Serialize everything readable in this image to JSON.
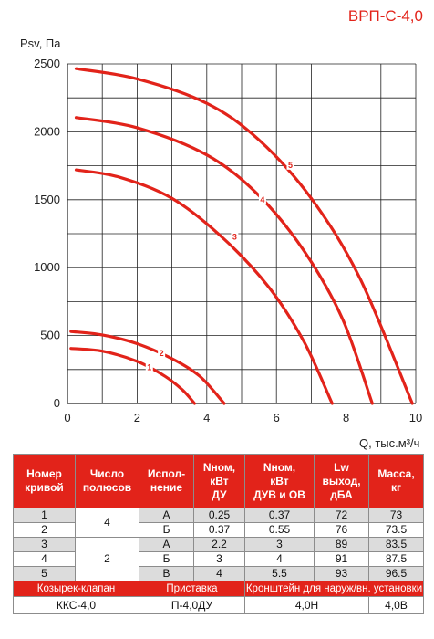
{
  "title": "ВРП-С-4,0",
  "chart_data": {
    "type": "line",
    "ylabel": "Psv, Па",
    "xlabel": "Q, тыс.м³/ч",
    "xlim": [
      0,
      10
    ],
    "ylim": [
      0,
      2500
    ],
    "xticks": [
      "0",
      "2",
      "4",
      "6",
      "8",
      "10"
    ],
    "yticks": [
      "0",
      "500",
      "1000",
      "1500",
      "2000",
      "2500"
    ],
    "grid": true,
    "series": [
      {
        "name": "1",
        "x": [
          0.1,
          1.0,
          2.0,
          2.8,
          3.3,
          3.65
        ],
        "y": [
          405,
          385,
          310,
          200,
          100,
          0
        ],
        "label_x": 2.35,
        "label_y": 265
      },
      {
        "name": "2",
        "x": [
          0.1,
          1.0,
          2.0,
          3.0,
          3.8,
          4.5
        ],
        "y": [
          530,
          505,
          440,
          330,
          200,
          0
        ],
        "label_x": 2.7,
        "label_y": 370
      },
      {
        "name": "3",
        "x": [
          0.25,
          1.5,
          3.0,
          4.5,
          5.8,
          6.8,
          7.6
        ],
        "y": [
          1720,
          1665,
          1510,
          1210,
          850,
          450,
          0
        ],
        "label_x": 4.8,
        "label_y": 1225
      },
      {
        "name": "4",
        "x": [
          0.25,
          2.0,
          4.0,
          5.5,
          6.8,
          7.9,
          8.75
        ],
        "y": [
          2105,
          2030,
          1830,
          1530,
          1120,
          620,
          0
        ],
        "label_x": 5.6,
        "label_y": 1500
      },
      {
        "name": "5",
        "x": [
          0.25,
          2.0,
          4.0,
          5.5,
          7.0,
          8.4,
          9.9
        ],
        "y": [
          2465,
          2390,
          2210,
          1940,
          1510,
          920,
          0
        ],
        "label_x": 6.4,
        "label_y": 1755
      }
    ]
  },
  "table": {
    "headers": [
      [
        "Номер",
        "кривой"
      ],
      [
        "Число",
        "полюсов"
      ],
      [
        "Испол-",
        "нение"
      ],
      [
        "Nном,",
        "кВт",
        "ДУ"
      ],
      [
        "Nном,",
        "кВт",
        "ДУВ и ОВ"
      ],
      [
        "Lw",
        "выход,",
        "дБА"
      ],
      [
        "Масса,",
        "кг"
      ]
    ],
    "rows": [
      {
        "curve": "1",
        "ispolnenie": "А",
        "n_du": "0.25",
        "n_duv": "0.37",
        "lw": "72",
        "mass": "73"
      },
      {
        "curve": "2",
        "ispolnenie": "Б",
        "n_du": "0.37",
        "n_duv": "0.55",
        "lw": "76",
        "mass": "73.5"
      },
      {
        "curve": "3",
        "ispolnenie": "А",
        "n_du": "2.2",
        "n_duv": "3",
        "lw": "89",
        "mass": "83.5"
      },
      {
        "curve": "4",
        "ispolnenie": "Б",
        "n_du": "3",
        "n_duv": "4",
        "lw": "91",
        "mass": "87.5"
      },
      {
        "curve": "5",
        "ispolnenie": "В",
        "n_du": "4",
        "n_duv": "5.5",
        "lw": "93",
        "mass": "96.5"
      }
    ],
    "poles_group_1": "4",
    "poles_group_2": "2",
    "accessories_headers": [
      "Козырек-клапан",
      "Приставка",
      "Кронштейн для наруж/вн. установки"
    ],
    "accessories_values": [
      "ККС-4,0",
      "П-4,0ДУ",
      "4,0Н",
      "4,0В"
    ]
  },
  "colors": {
    "accent": "#e2231a",
    "shade": "#dcdcdc",
    "grid": "#222222"
  }
}
